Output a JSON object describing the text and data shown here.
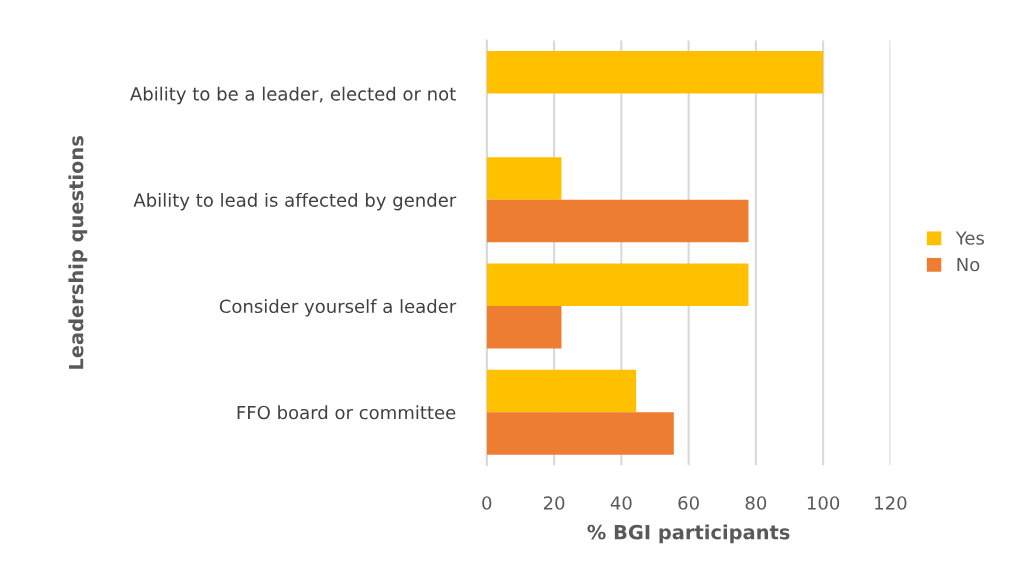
{
  "chart_data": {
    "type": "bar",
    "orientation": "horizontal",
    "categories": [
      "Ability to be a leader, elected or not",
      "Ability to lead is affected by gender",
      "Consider yourself a leader",
      "FFO board or committee"
    ],
    "series": [
      {
        "name": "Yes",
        "color": "#ffc000",
        "values": [
          100,
          22.2,
          77.8,
          44.4
        ]
      },
      {
        "name": "No",
        "color": "#ed7d31",
        "values": [
          0,
          77.8,
          22.2,
          55.6
        ]
      }
    ],
    "xlim": [
      0,
      120
    ],
    "xticks": [
      0,
      20,
      40,
      60,
      80,
      100,
      120
    ],
    "xlabel": "% BGI participants",
    "ylabel": "Leadership questions",
    "grid": "x",
    "legend": "right"
  }
}
